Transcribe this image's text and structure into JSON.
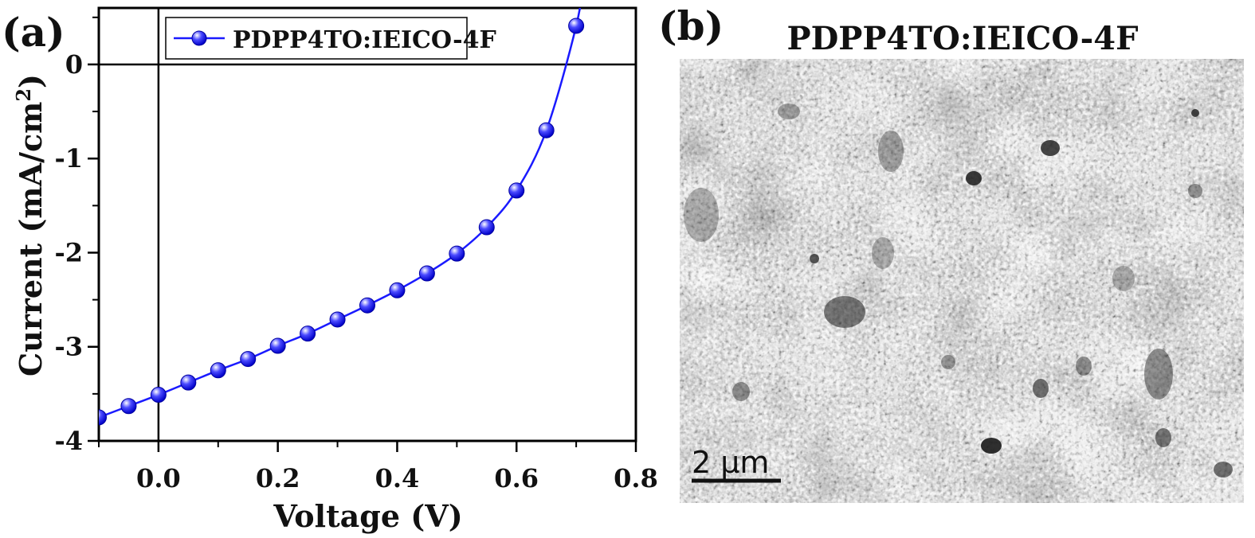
{
  "panel_a": {
    "label": "(a)",
    "chart_data": {
      "type": "line",
      "xlabel": "Voltage (V)",
      "ylabel_main": "Current (mA/cm",
      "ylabel_sup": "2",
      "ylabel_tail": ")",
      "xlim": [
        -0.1,
        0.8
      ],
      "ylim": [
        -4,
        0.6
      ],
      "x_ticks": [
        0.0,
        0.2,
        0.4,
        0.6,
        0.8
      ],
      "x_tick_labels": [
        "0.0",
        "0.2",
        "0.4",
        "0.6",
        "0.8"
      ],
      "y_ticks": [
        -4,
        -3,
        -2,
        -1,
        0
      ],
      "y_tick_labels": [
        "-4",
        "-3",
        "-2",
        "-1",
        "0"
      ],
      "grid": false,
      "legend_position": "top-left",
      "series": [
        {
          "name": "PDPP4TO:IEICO-4F",
          "color": "#1a1aff",
          "x": [
            -0.1,
            -0.05,
            0.0,
            0.05,
            0.1,
            0.15,
            0.2,
            0.25,
            0.3,
            0.35,
            0.4,
            0.45,
            0.5,
            0.55,
            0.6,
            0.65,
            0.7
          ],
          "y": [
            -3.75,
            -3.63,
            -3.51,
            -3.38,
            -3.25,
            -3.13,
            -2.99,
            -2.86,
            -2.71,
            -2.56,
            -2.4,
            -2.22,
            -2.01,
            -1.73,
            -1.34,
            -0.7,
            0.41
          ]
        }
      ]
    }
  },
  "panel_b": {
    "label": "(b)",
    "title": "PDPP4TO:IEICO-4F",
    "scale_bar_label": "2 μm"
  }
}
